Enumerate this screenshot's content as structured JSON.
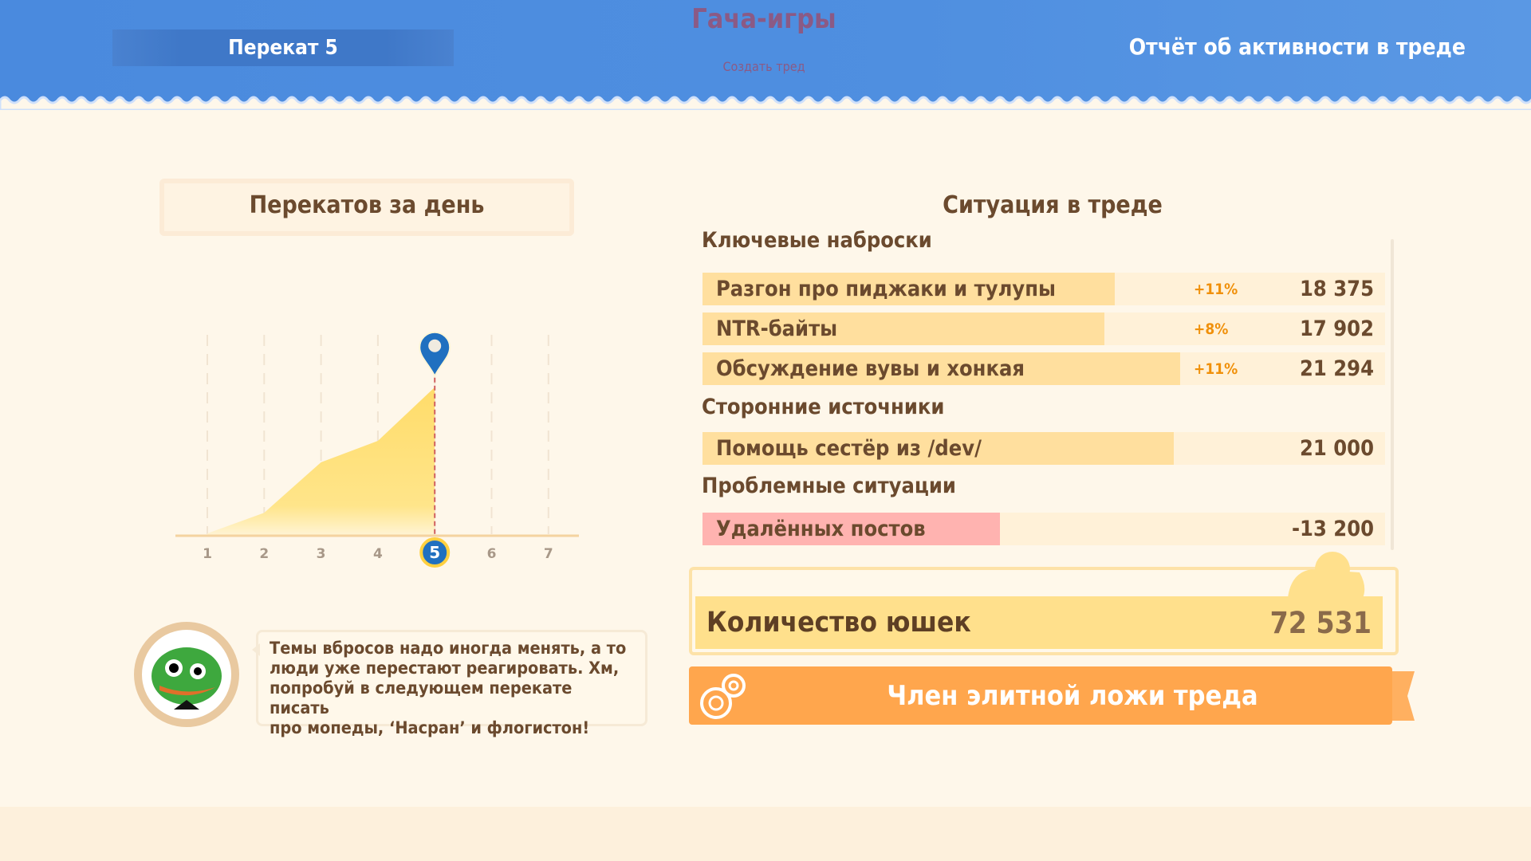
{
  "header": {
    "banner": "Перекат 5",
    "game_title": "Гача-игры",
    "create_thread": "Создать тред",
    "report_title": "Отчёт об активности в треде"
  },
  "left": {
    "title": "Перекатов за день"
  },
  "chart_data": {
    "type": "area",
    "categories": [
      "1",
      "2",
      "3",
      "4",
      "5",
      "6",
      "7"
    ],
    "values": [
      1.5,
      15,
      48,
      62,
      97,
      null,
      null
    ],
    "selected": "5",
    "ylim": [
      0,
      100
    ],
    "grid": "vertical-dashed",
    "color": "#ffdc6a",
    "marker_color": "#2070c0"
  },
  "right": {
    "title": "Ситуация в треде",
    "sections": [
      {
        "label": "Ключевые наброски",
        "rows": [
          {
            "label": "Разгон про пиджаки и тулупы",
            "pct": "+11%",
            "value": "18 375",
            "fill": 0.604
          },
          {
            "label": "NTR-байты",
            "pct": "+8%",
            "value": "17 902",
            "fill": 0.589
          },
          {
            "label": "Обсуждение вувы и хонкая",
            "pct": "+11%",
            "value": "21 294",
            "fill": 0.7
          }
        ]
      },
      {
        "label": "Сторонние источники",
        "rows": [
          {
            "label": "Помощь сестёр из /dev/",
            "pct": "",
            "value": "21 000",
            "fill": 0.69
          }
        ]
      },
      {
        "label": "Проблемные ситуации",
        "rows": [
          {
            "label": "Удалённых постов",
            "pct": "",
            "value": "-13 200",
            "fill": 0.436,
            "negative": true
          }
        ]
      }
    ],
    "total_label": "Количество юшек",
    "total_value": "72 531",
    "badge": "Член элитной ложи треда"
  },
  "bubble": {
    "lines": [
      "Темы вбросов надо иногда менять, а то",
      "люди уже перестают реагировать. Хм,",
      "попробуй в следующем перекате писать",
      "про мопеды, ‘Насран’ и флогистон!"
    ]
  },
  "colors": {
    "header": "#4f8fe0",
    "accent": "#ffa64d",
    "positive": "#f0900a",
    "negative": "#ffb3b0"
  }
}
